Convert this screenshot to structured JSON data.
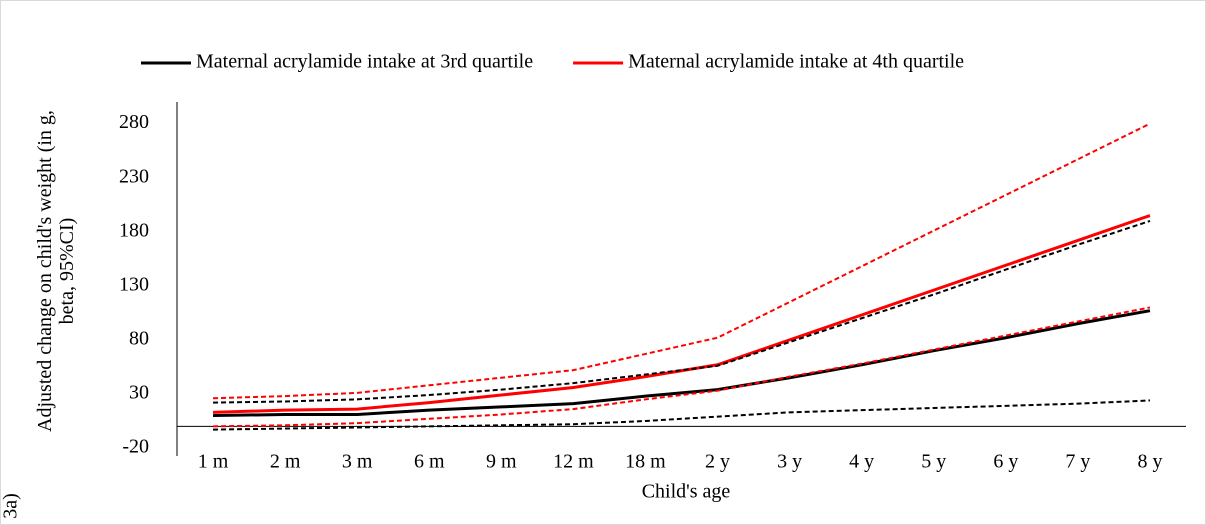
{
  "chart_data": {
    "type": "line",
    "y_label": "Adjusted change  on child's weight (in g, beta, 95%CI)",
    "x_label": "Child's age",
    "panel_label": "3a)",
    "categories": [
      "1 m",
      "2 m",
      "3 m",
      "6 m",
      "9 m",
      "12 m",
      "18 m",
      "2 y",
      "3 y",
      "4 y",
      "5 y",
      "6 y",
      "7 y",
      "8 y"
    ],
    "ylim": [
      -20,
      300
    ],
    "yticks": [
      -20,
      30,
      80,
      130,
      180,
      230,
      280
    ],
    "grid": false,
    "legend": "top",
    "series": [
      {
        "name": "Maternal acrylamide intake at 3rd quartile",
        "color": "#000000",
        "dash": false,
        "values": [
          10,
          11,
          11,
          15,
          18,
          21,
          28,
          34,
          45,
          57,
          70,
          82,
          95,
          107
        ]
      },
      {
        "name": "Maternal acrylamide intake at 4th quartile",
        "color": "#ff0000",
        "dash": false,
        "values": [
          13,
          15,
          16,
          22,
          29,
          36,
          46,
          57,
          80,
          103,
          126,
          149,
          172,
          195
        ]
      },
      {
        "color": "#000000",
        "dash": true,
        "values": [
          22,
          23,
          25,
          29,
          34,
          40,
          48,
          56,
          78,
          100,
          122,
          145,
          168,
          190
        ]
      },
      {
        "color": "#000000",
        "dash": true,
        "values": [
          -3,
          -2,
          -1,
          0,
          1,
          2,
          5,
          9,
          13,
          15,
          17,
          19,
          21,
          24
        ]
      },
      {
        "color": "#ff0000",
        "dash": true,
        "values": [
          26,
          28,
          31,
          38,
          45,
          52,
          67,
          82,
          115,
          148,
          181,
          214,
          247,
          280
        ]
      },
      {
        "color": "#ff0000",
        "dash": true,
        "values": [
          0,
          1,
          3,
          7,
          11,
          16,
          25,
          33,
          46,
          58,
          71,
          84,
          97,
          110
        ]
      }
    ]
  }
}
